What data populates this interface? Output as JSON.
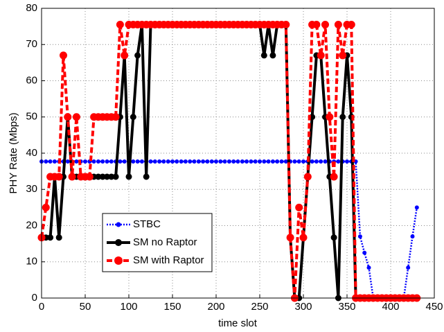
{
  "chart_data": {
    "type": "line",
    "xlabel": "time slot",
    "ylabel": "PHY Rate (Mbps)",
    "xlim": [
      0,
      450
    ],
    "xticks": [
      0,
      50,
      100,
      150,
      200,
      250,
      300,
      350,
      400,
      450
    ],
    "ylim": [
      0,
      80
    ],
    "yticks": [
      0,
      10,
      20,
      30,
      40,
      50,
      60,
      70,
      80
    ],
    "grid": true,
    "legend": "lower left",
    "x": [
      0,
      5,
      10,
      15,
      20,
      25,
      30,
      35,
      40,
      45,
      50,
      55,
      60,
      65,
      70,
      75,
      80,
      85,
      90,
      95,
      100,
      105,
      110,
      115,
      120,
      125,
      130,
      135,
      140,
      145,
      150,
      155,
      160,
      165,
      170,
      175,
      180,
      185,
      190,
      195,
      200,
      205,
      210,
      215,
      220,
      225,
      230,
      235,
      240,
      245,
      250,
      255,
      260,
      265,
      270,
      275,
      280,
      285,
      290,
      295,
      300,
      305,
      310,
      315,
      320,
      325,
      330,
      335,
      340,
      345,
      350,
      355,
      360,
      365,
      370,
      375,
      380,
      385,
      390,
      395,
      400,
      405,
      410,
      415,
      420,
      425,
      430
    ],
    "series": [
      {
        "name": "STBC",
        "color": "#0000ff",
        "linestyle": "dotted",
        "marker_size": 2.5,
        "values": [
          37.7,
          37.7,
          37.7,
          37.7,
          37.7,
          37.7,
          37.7,
          37.7,
          37.7,
          37.7,
          37.7,
          37.7,
          37.7,
          37.7,
          37.7,
          37.7,
          37.7,
          37.7,
          37.7,
          37.7,
          37.7,
          37.7,
          37.7,
          37.7,
          37.7,
          37.7,
          37.7,
          37.7,
          37.7,
          37.7,
          37.7,
          37.7,
          37.7,
          37.7,
          37.7,
          37.7,
          37.7,
          37.7,
          37.7,
          37.7,
          37.7,
          37.7,
          37.7,
          37.7,
          37.7,
          37.7,
          37.7,
          37.7,
          37.7,
          37.7,
          37.7,
          37.7,
          37.7,
          37.7,
          37.7,
          37.7,
          37.7,
          37.7,
          37.7,
          37.7,
          37.7,
          37.7,
          37.7,
          37.7,
          37.7,
          37.7,
          37.7,
          37.7,
          37.7,
          37.7,
          37.7,
          37.7,
          37.7,
          17,
          12.5,
          8.4,
          0,
          0,
          0,
          0,
          0,
          0,
          0,
          0,
          8.4,
          17,
          25
        ]
      },
      {
        "name": "SM no Raptor",
        "color": "#000000",
        "linestyle": "solid",
        "marker_size": 4,
        "values": [
          16.7,
          16.7,
          16.7,
          33.5,
          16.7,
          33.5,
          50,
          33.5,
          33.5,
          33.5,
          33.5,
          33.5,
          33.5,
          33.5,
          33.5,
          33.5,
          33.5,
          33.5,
          50,
          67,
          33.5,
          50,
          67,
          75.5,
          33.5,
          75.5,
          75.5,
          75.5,
          75.5,
          75.5,
          75.5,
          75.5,
          75.5,
          75.5,
          75.5,
          75.5,
          75.5,
          75.5,
          75.5,
          75.5,
          75.5,
          75.5,
          75.5,
          75.5,
          75.5,
          75.5,
          75.5,
          75.5,
          75.5,
          75.5,
          75.5,
          67,
          75.5,
          67,
          75.5,
          75.5,
          75.5,
          16.7,
          0,
          0,
          16.7,
          33.5,
          50,
          67,
          67,
          50,
          33.5,
          16.7,
          0,
          50,
          67,
          50,
          0,
          0,
          0,
          0,
          0,
          0,
          0,
          0,
          0,
          0,
          0,
          0,
          0,
          0,
          0
        ]
      },
      {
        "name": "SM with Raptor",
        "color": "#ff0000",
        "linestyle": "dashed",
        "marker_size": 5,
        "values": [
          16.7,
          25,
          33.5,
          33.5,
          33.5,
          67,
          50,
          33.5,
          50,
          33.5,
          33.5,
          33.5,
          50,
          50,
          50,
          50,
          50,
          50,
          75.5,
          67,
          75.5,
          75.5,
          75.5,
          75.5,
          75.5,
          75.5,
          75.5,
          75.5,
          75.5,
          75.5,
          75.5,
          75.5,
          75.5,
          75.5,
          75.5,
          75.5,
          75.5,
          75.5,
          75.5,
          75.5,
          75.5,
          75.5,
          75.5,
          75.5,
          75.5,
          75.5,
          75.5,
          75.5,
          75.5,
          75.5,
          75.5,
          75.5,
          75.5,
          75.5,
          75.5,
          75.5,
          75.5,
          16.7,
          0,
          25,
          16.7,
          33.5,
          75.5,
          75.5,
          67,
          75.5,
          50,
          33.5,
          75.5,
          67,
          75.5,
          75.5,
          0,
          0,
          0,
          0,
          0,
          0,
          0,
          0,
          0,
          0,
          0,
          0,
          0,
          0,
          0
        ]
      }
    ]
  }
}
